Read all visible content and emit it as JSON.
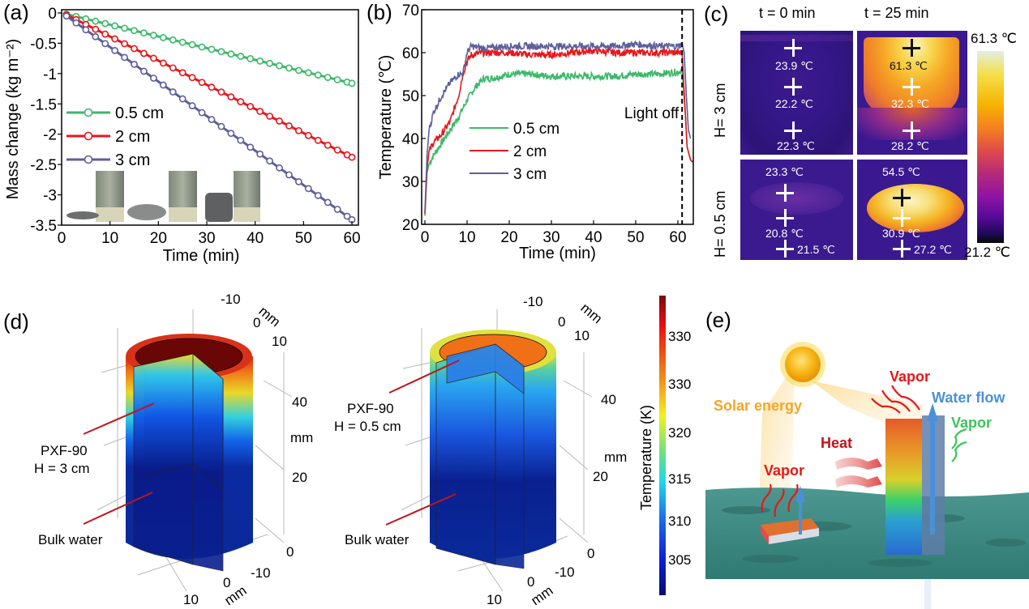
{
  "panels": {
    "a": {
      "label": "(a)"
    },
    "b": {
      "label": "(b)"
    },
    "c": {
      "label": "(c)"
    },
    "d": {
      "label": "(d)"
    },
    "e": {
      "label": "(e)"
    }
  },
  "chart_data": [
    {
      "id": "a",
      "type": "line",
      "title": "",
      "xlabel": "Time (min)",
      "ylabel": "Mass change (kg m⁻²)",
      "xlim": [
        0,
        61
      ],
      "ylim": [
        -3.5,
        0
      ],
      "xticks": [
        0,
        10,
        20,
        30,
        40,
        50,
        60
      ],
      "yticks": [
        0,
        -0.5,
        -1,
        -1.5,
        -2,
        -2.5,
        -3,
        -3.5
      ],
      "ytick_labels": [
        "0",
        "-0.5",
        "-1",
        "-1.5",
        "-2",
        "-2.5",
        "-3",
        "-3.5"
      ],
      "marker": "open-circle",
      "legend_position": "left-middle",
      "x": [
        1,
        3,
        5,
        7,
        9,
        11,
        13,
        15,
        17,
        19,
        21,
        23,
        25,
        27,
        29,
        31,
        33,
        35,
        37,
        39,
        41,
        43,
        45,
        47,
        49,
        51,
        53,
        55,
        57,
        59,
        60
      ],
      "series": [
        {
          "name": "0.5 cm",
          "color": "#3cb96a",
          "start": -0.02,
          "end": -1.16
        },
        {
          "name": "2 cm",
          "color": "#e8161b",
          "start": -0.03,
          "end": -2.38
        },
        {
          "name": "3 cm",
          "color": "#5d5f9a",
          "start": -0.05,
          "end": -3.41
        }
      ],
      "inset_photos": [
        "sample H=0.5 cm with ruler",
        "sample H=2 cm with ruler",
        "sample H=3 cm with ruler"
      ]
    },
    {
      "id": "b",
      "type": "line",
      "title": "",
      "xlabel": "Time (min)",
      "ylabel": "Temperature (℃)",
      "xlim": [
        -1,
        64
      ],
      "ylim": [
        20,
        70
      ],
      "xticks": [
        0,
        10,
        20,
        30,
        40,
        50,
        60
      ],
      "yticks": [
        20,
        30,
        40,
        50,
        60,
        70
      ],
      "legend_position": "center-left",
      "annotation": {
        "text": "Light off",
        "x": 61
      },
      "series": [
        {
          "name": "0.5 cm",
          "color": "#3cb96a",
          "points": [
            [
              0,
              22
            ],
            [
              0.5,
              32
            ],
            [
              1,
              34
            ],
            [
              2,
              36
            ],
            [
              4,
              39
            ],
            [
              6,
              42
            ],
            [
              8,
              45
            ],
            [
              10,
              49
            ],
            [
              12,
              52
            ],
            [
              14,
              54
            ],
            [
              16,
              54
            ],
            [
              20,
              55
            ],
            [
              25,
              55
            ],
            [
              30,
              54.5
            ],
            [
              35,
              54.5
            ],
            [
              40,
              54.5
            ],
            [
              45,
              54.5
            ],
            [
              50,
              55
            ],
            [
              55,
              55
            ],
            [
              60,
              55.5
            ],
            [
              61,
              56
            ],
            [
              61.8,
              45
            ],
            [
              62.2,
              38
            ],
            [
              63,
              35
            ],
            [
              63.5,
              34.5
            ]
          ]
        },
        {
          "name": "2 cm",
          "color": "#e8161b",
          "points": [
            [
              0,
              22.5
            ],
            [
              0.5,
              33
            ],
            [
              1,
              37
            ],
            [
              2,
              39
            ],
            [
              4,
              41
            ],
            [
              6,
              44
            ],
            [
              8,
              50
            ],
            [
              9,
              55
            ],
            [
              10,
              58
            ],
            [
              11,
              59.5
            ],
            [
              14,
              60
            ],
            [
              20,
              60
            ],
            [
              25,
              59.5
            ],
            [
              30,
              59.5
            ],
            [
              35,
              60
            ],
            [
              40,
              60.5
            ],
            [
              45,
              60
            ],
            [
              50,
              60
            ],
            [
              55,
              60
            ],
            [
              60,
              60
            ],
            [
              61,
              60
            ],
            [
              61.8,
              45
            ],
            [
              62.2,
              38
            ],
            [
              63,
              35
            ],
            [
              63.5,
              34.5
            ]
          ]
        },
        {
          "name": "3 cm",
          "color": "#5d5f9a",
          "points": [
            [
              0,
              23
            ],
            [
              0.5,
              36
            ],
            [
              1,
              42
            ],
            [
              2,
              46
            ],
            [
              4,
              50
            ],
            [
              6,
              53
            ],
            [
              8,
              55
            ],
            [
              9,
              55
            ],
            [
              10,
              60
            ],
            [
              11,
              61.5
            ],
            [
              14,
              61
            ],
            [
              20,
              61.5
            ],
            [
              25,
              61.5
            ],
            [
              30,
              61.5
            ],
            [
              35,
              61.5
            ],
            [
              40,
              61.5
            ],
            [
              45,
              61.5
            ],
            [
              50,
              62
            ],
            [
              55,
              61.5
            ],
            [
              60,
              61.5
            ],
            [
              61,
              62
            ],
            [
              61.5,
              60
            ],
            [
              62,
              50
            ],
            [
              62.5,
              42
            ],
            [
              63,
              40
            ]
          ]
        }
      ]
    }
  ],
  "thermal": {
    "col_headers": [
      "t = 0 min",
      "t = 25 min"
    ],
    "row_labels": [
      "H= 3 cm",
      "H= 0.5 cm"
    ],
    "scale_max": "61.3 ℃",
    "scale_min": "21.2 ℃",
    "images": [
      {
        "row": 0,
        "col": 0,
        "readings": [
          "23.9 ℃",
          "22.2 ℃",
          "22.3 ℃"
        ]
      },
      {
        "row": 0,
        "col": 1,
        "readings": [
          "61.3 ℃",
          "32.3 ℃",
          "28.2 ℃"
        ]
      },
      {
        "row": 1,
        "col": 0,
        "readings": [
          "23.3 ℃",
          "20.8 ℃",
          "21.5 ℃"
        ]
      },
      {
        "row": 1,
        "col": 1,
        "readings": [
          "54.5 ℃",
          "30.9 ℃",
          "27.2 ℃"
        ]
      }
    ]
  },
  "simulation": {
    "left": {
      "label_top": "PXF-90",
      "label_h": "H = 3 cm",
      "label_bottom": "Bulk water"
    },
    "right": {
      "label_top": "PXF-90",
      "label_h": "H = 0.5 cm",
      "label_bottom": "Bulk water"
    },
    "axis_ticks": {
      "top": [
        "-10",
        "0",
        "10"
      ],
      "top_unit": "mm",
      "vertical": [
        "40",
        "20",
        "0"
      ],
      "vertical_unit": "mm",
      "bottom": [
        "-10",
        "0",
        "10"
      ],
      "bottom_unit": "mm"
    },
    "colorbar": {
      "title": "Temperature (K)",
      "ticks": [
        "330",
        "330",
        "320",
        "315",
        "310",
        "305"
      ]
    }
  },
  "schematic": {
    "solar_energy": "Solar energy",
    "vapor_top": "Vapor",
    "water_flow": "Water flow",
    "vapor_side": "Vapor",
    "heat": "Heat",
    "vapor_small": "Vapor",
    "colors": {
      "solar": "#f5a623",
      "vapor_red": "#e8161b",
      "water_flow": "#4a90d9",
      "vapor_green": "#3cc45a",
      "heat": "#c0141a",
      "water": "#3d8a80"
    }
  }
}
